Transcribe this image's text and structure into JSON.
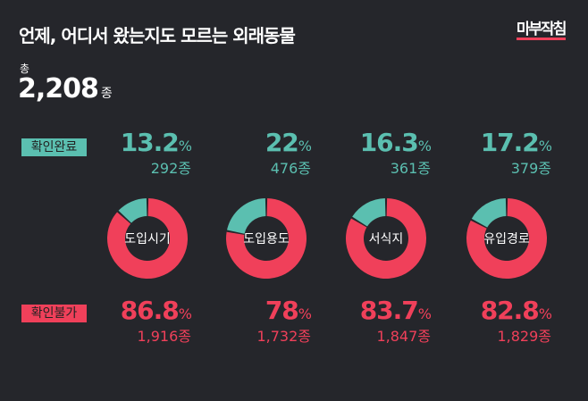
{
  "title": "언제, 어디서 왔는지도 모르는 외래동물",
  "logo": "마부작침",
  "total": {
    "label": "총",
    "value": "2,208",
    "unit": "종"
  },
  "badges": {
    "confirmed": "확인완료",
    "unconfirmed": "확인불가"
  },
  "colors": {
    "confirmed": "#5bbfb0",
    "unconfirmed": "#f0405a",
    "background": "#25262b"
  },
  "chart_data": {
    "type": "pie",
    "variant": "donut",
    "categories": [
      "도입시기",
      "도입용도",
      "서식지",
      "유입경로"
    ],
    "series": [
      {
        "name": "확인완료",
        "percent": [
          13.2,
          22,
          16.3,
          17.2
        ],
        "percent_labels": [
          "13.2",
          "22",
          "16.3",
          "17.2"
        ],
        "counts": [
          "292종",
          "476종",
          "361종",
          "379종"
        ]
      },
      {
        "name": "확인불가",
        "percent": [
          86.8,
          78,
          83.7,
          82.8
        ],
        "percent_labels": [
          "86.8",
          "78",
          "83.7",
          "82.8"
        ],
        "counts": [
          "1,916종",
          "1,732종",
          "1,847종",
          "1,829종"
        ]
      }
    ],
    "percent_sign": "%"
  }
}
